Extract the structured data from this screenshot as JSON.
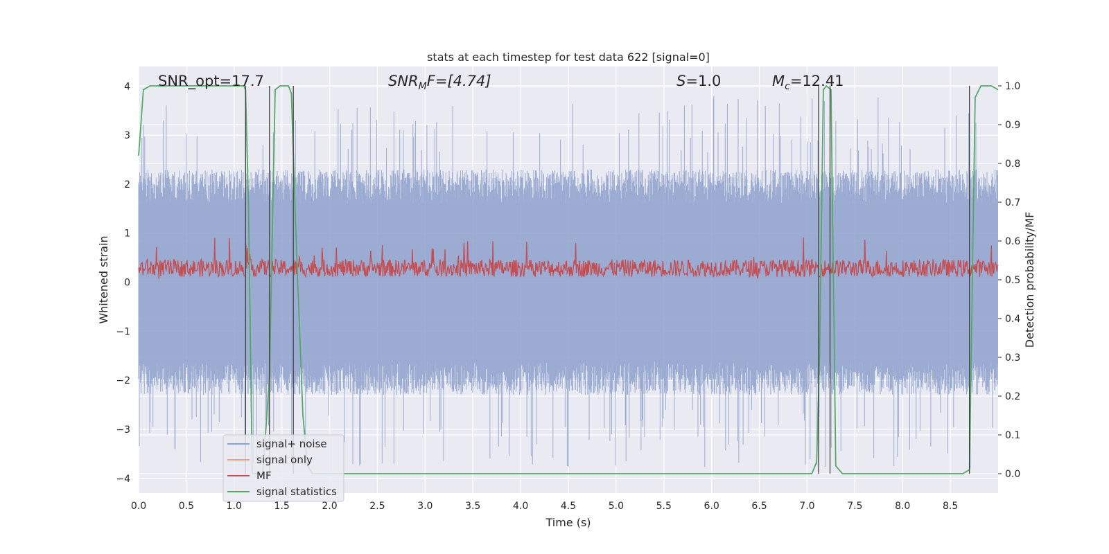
{
  "chart_data": {
    "type": "line",
    "title": "stats at each timestep for test data 622 [signal=0]",
    "xlabel": "Time (s)",
    "ylabel": "Whitened strain",
    "y2label": "Detection probability/MF",
    "xlim": [
      0,
      9.0
    ],
    "ylim": [
      -4.3,
      4.4
    ],
    "y2lim": [
      -0.05,
      1.05
    ],
    "xticks": [
      0.0,
      0.5,
      1.0,
      1.5,
      2.0,
      2.5,
      3.0,
      3.5,
      4.0,
      4.5,
      5.0,
      5.5,
      6.0,
      6.5,
      7.0,
      7.5,
      8.0,
      8.5
    ],
    "xtick_labels": [
      "0.0",
      "0.5",
      "1.0",
      "1.5",
      "2.0",
      "2.5",
      "3.0",
      "3.5",
      "4.0",
      "4.5",
      "5.0",
      "5.5",
      "6.0",
      "6.5",
      "7.0",
      "7.5",
      "8.0",
      "8.5"
    ],
    "yticks": [
      -4,
      -3,
      -2,
      -1,
      0,
      1,
      2,
      3,
      4
    ],
    "ytick_labels": [
      "−4",
      "−3",
      "−2",
      "−1",
      "0",
      "1",
      "2",
      "3",
      "4"
    ],
    "y2ticks": [
      0.0,
      0.1,
      0.2,
      0.3,
      0.4,
      0.5,
      0.6,
      0.7,
      0.8,
      0.9,
      1.0
    ],
    "y2tick_labels": [
      "0.0",
      "0.1",
      "0.2",
      "0.3",
      "0.4",
      "0.5",
      "0.6",
      "0.7",
      "0.8",
      "0.9",
      "1.0"
    ],
    "grid": true,
    "legend_position": "lower-left",
    "annotations": {
      "snr_opt": "SNR_opt=17.7",
      "snr_mf_prefix": "SNR",
      "snr_mf_sub": "M",
      "snr_mf_suffix": "F=[4.74]",
      "s_prefix": "S",
      "s_suffix": "=1.0",
      "mc_prefix": "M",
      "mc_sub": "c",
      "mc_suffix": "=12.41"
    },
    "series": [
      {
        "name": "signal+ noise",
        "color": "#8da0cb",
        "axis": "left",
        "description_style": "dense noise, amplitude envelope about ±2.3 with spikes to ±3.9",
        "envelope": 2.3
      },
      {
        "name": "signal only",
        "color": "#e8a08a",
        "axis": "left",
        "values": []
      },
      {
        "name": "MF",
        "color": "#c44e52",
        "axis": "right",
        "baseline": 0.53,
        "range": [
          0.5,
          0.61
        ]
      },
      {
        "name": "signal statistics",
        "color": "#55a868",
        "axis": "right",
        "x": [
          0.0,
          0.05,
          0.12,
          0.3,
          0.6,
          1.0,
          1.1,
          1.12,
          1.15,
          1.19,
          1.25,
          1.3,
          1.37,
          1.43,
          1.48,
          1.52,
          1.57,
          1.6,
          1.65,
          1.72,
          1.77,
          1.82,
          1.9,
          2.2,
          3.0,
          4.0,
          5.0,
          6.0,
          6.9,
          7.05,
          7.1,
          7.13,
          7.17,
          7.2,
          7.25,
          7.3,
          7.37,
          7.6,
          8.0,
          8.5,
          8.63,
          8.7,
          8.76,
          8.82,
          8.87,
          8.93,
          9.0
        ],
        "values": [
          0.82,
          0.99,
          1.0,
          1.0,
          1.0,
          1.0,
          1.0,
          0.99,
          0.7,
          0.0,
          0.0,
          0.0,
          0.25,
          0.99,
          1.0,
          1.0,
          1.0,
          0.98,
          0.6,
          0.15,
          0.02,
          0.0,
          0.0,
          0.0,
          0.0,
          0.0,
          0.0,
          0.0,
          0.0,
          0.0,
          0.03,
          0.3,
          0.99,
          1.0,
          0.99,
          0.02,
          0.0,
          0.0,
          0.0,
          0.0,
          0.0,
          0.01,
          0.97,
          1.0,
          1.0,
          1.0,
          0.99
        ]
      }
    ],
    "vlines": {
      "color": "#404040",
      "x": [
        1.12,
        1.37,
        1.62,
        7.12,
        7.24,
        8.7
      ],
      "ymin": 0.0,
      "ymax": 1.0
    }
  }
}
